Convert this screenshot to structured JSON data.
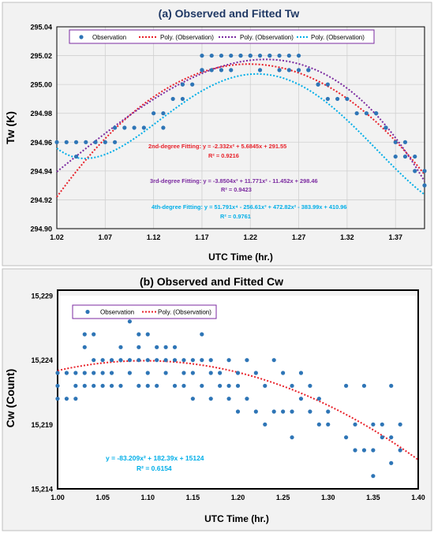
{
  "chart_data": [
    {
      "type": "scatter",
      "title": "(a) Observed  and Fitted Tw",
      "xlabel": "UTC Time (hr.)",
      "ylabel": "Tw (K)",
      "xlim": [
        1.02,
        1.4
      ],
      "ylim": [
        294.9,
        295.04
      ],
      "xticks": [
        "1.02",
        "1.07",
        "1.12",
        "1.17",
        "1.22",
        "1.27",
        "1.32",
        "1.37"
      ],
      "yticks": [
        "294.90",
        "294.92",
        "294.94",
        "294.96",
        "294.98",
        "295.00",
        "295.02",
        "295.04"
      ],
      "grid": true,
      "legend_position": "top",
      "legend": [
        "Observation",
        "Poly. (Observation)",
        "Poly. (Observation)",
        "Poly. (Observation)"
      ],
      "colors": {
        "observation": "#2e75b6",
        "fit2": "#e8212a",
        "fit3": "#7b2aa0",
        "fit4": "#00aee8",
        "title": "#1f3864",
        "frame": "#000000"
      },
      "series": [
        {
          "name": "Observation",
          "x": [
            1.02,
            1.03,
            1.04,
            1.04,
            1.05,
            1.06,
            1.07,
            1.08,
            1.08,
            1.09,
            1.1,
            1.11,
            1.12,
            1.13,
            1.13,
            1.14,
            1.15,
            1.15,
            1.16,
            1.17,
            1.17,
            1.17,
            1.18,
            1.18,
            1.19,
            1.19,
            1.2,
            1.2,
            1.21,
            1.21,
            1.22,
            1.22,
            1.23,
            1.23,
            1.24,
            1.24,
            1.25,
            1.25,
            1.26,
            1.26,
            1.27,
            1.27,
            1.28,
            1.28,
            1.29,
            1.29,
            1.3,
            1.3,
            1.31,
            1.32,
            1.33,
            1.34,
            1.35,
            1.35,
            1.36,
            1.36,
            1.37,
            1.37,
            1.38,
            1.38,
            1.39,
            1.39,
            1.4,
            1.4
          ],
          "y": [
            294.96,
            294.96,
            294.96,
            294.95,
            294.96,
            294.96,
            294.96,
            294.96,
            294.97,
            294.97,
            294.97,
            294.97,
            294.98,
            294.97,
            294.98,
            294.99,
            294.99,
            295.0,
            295.0,
            295.01,
            295.02,
            295.01,
            295.02,
            295.01,
            295.02,
            295.01,
            295.02,
            295.01,
            295.02,
            295.02,
            295.02,
            295.02,
            295.02,
            295.01,
            295.02,
            295.02,
            295.01,
            295.02,
            295.01,
            295.02,
            295.01,
            295.02,
            295.01,
            295.01,
            295.0,
            295.0,
            295.0,
            294.99,
            294.99,
            294.99,
            294.98,
            294.98,
            294.98,
            294.98,
            294.97,
            294.97,
            294.96,
            294.95,
            294.96,
            294.95,
            294.94,
            294.95,
            294.94,
            294.93
          ]
        },
        {
          "name": "Poly. (Observation)",
          "fit": "2nd-degree",
          "coefficients": [
            -2.332,
            5.6845,
            291.55
          ]
        },
        {
          "name": "Poly. (Observation)",
          "fit": "3rd-degree",
          "coefficients": [
            -3.8504,
            11.771,
            -11.452,
            298.46
          ]
        },
        {
          "name": "Poly. (Observation)",
          "fit": "4th-degree",
          "coefficients": [
            51.791,
            -256.61,
            472.82,
            -383.99,
            410.96
          ]
        }
      ],
      "annotations": [
        {
          "eq": "2nd-degree Fitting: y = -2.332x² + 5.6845x + 291.55",
          "r2": "R² = 0.9216"
        },
        {
          "eq": "3rd-degree Fitting: y = -3.8504x³ + 11.771x² - 11.452x + 298.46",
          "r2": "R² = 0.9423"
        },
        {
          "eq": "4th-degree Fitting: y = 51.791x⁴ - 256.61x³ + 472.82x² - 383.99x + 410.96",
          "r2": "R² = 0.9761"
        }
      ]
    },
    {
      "type": "scatter",
      "title": "(b) Observed  and Fitted Cw",
      "xlabel": "UTC Time (hr.)",
      "ylabel": "Cw (Count)",
      "xlim": [
        1.0,
        1.4
      ],
      "ylim": [
        15214,
        15229
      ],
      "xticks": [
        "1.00",
        "1.05",
        "1.10",
        "1.15",
        "1.20",
        "1.25",
        "1.30",
        "1.35",
        "1.40"
      ],
      "yticks": [
        "15,214",
        "15,219",
        "15,224",
        "15,229"
      ],
      "grid": false,
      "legend_position": "top-left",
      "legend": [
        "Observation",
        "Poly. (Observation)"
      ],
      "colors": {
        "observation": "#2e75b6",
        "fit2": "#e8212a",
        "annotation": "#00aee8",
        "title": "#000000",
        "frame": "#000000"
      },
      "series": [
        {
          "name": "Observation",
          "x": [
            1.0,
            1.0,
            1.0,
            1.01,
            1.01,
            1.02,
            1.02,
            1.02,
            1.03,
            1.03,
            1.03,
            1.03,
            1.04,
            1.04,
            1.04,
            1.04,
            1.05,
            1.05,
            1.05,
            1.06,
            1.06,
            1.06,
            1.07,
            1.07,
            1.07,
            1.08,
            1.08,
            1.08,
            1.09,
            1.09,
            1.09,
            1.09,
            1.1,
            1.1,
            1.1,
            1.1,
            1.11,
            1.11,
            1.11,
            1.12,
            1.12,
            1.12,
            1.13,
            1.13,
            1.13,
            1.14,
            1.14,
            1.14,
            1.15,
            1.15,
            1.15,
            1.16,
            1.16,
            1.16,
            1.17,
            1.17,
            1.17,
            1.18,
            1.18,
            1.19,
            1.19,
            1.19,
            1.2,
            1.2,
            1.2,
            1.21,
            1.21,
            1.22,
            1.22,
            1.23,
            1.23,
            1.24,
            1.24,
            1.25,
            1.25,
            1.26,
            1.26,
            1.26,
            1.27,
            1.27,
            1.28,
            1.28,
            1.29,
            1.29,
            1.3,
            1.3,
            1.32,
            1.32,
            1.33,
            1.33,
            1.34,
            1.34,
            1.35,
            1.35,
            1.35,
            1.36,
            1.36,
            1.37,
            1.37,
            1.37,
            1.38,
            1.38
          ],
          "y": [
            15222,
            15223,
            15221,
            15223,
            15221,
            15223,
            15221,
            15222,
            15225,
            15226,
            15223,
            15222,
            15226,
            15224,
            15223,
            15222,
            15224,
            15223,
            15222,
            15224,
            15223,
            15222,
            15225,
            15224,
            15222,
            15227,
            15224,
            15223,
            15226,
            15225,
            15224,
            15222,
            15226,
            15224,
            15223,
            15222,
            15225,
            15224,
            15222,
            15225,
            15224,
            15223,
            15225,
            15224,
            15222,
            15224,
            15223,
            15222,
            15224,
            15223,
            15221,
            15226,
            15224,
            15222,
            15224,
            15223,
            15221,
            15223,
            15222,
            15224,
            15222,
            15221,
            15223,
            15222,
            15220,
            15224,
            15221,
            15223,
            15220,
            15222,
            15219,
            15224,
            15220,
            15223,
            15220,
            15222,
            15220,
            15218,
            15223,
            15221,
            15222,
            15220,
            15221,
            15219,
            15219,
            15220,
            15222,
            15218,
            15219,
            15217,
            15222,
            15217,
            15219,
            15217,
            15215,
            15219,
            15218,
            15222,
            15218,
            15216,
            15219,
            15217
          ]
        },
        {
          "name": "Poly. (Observation)",
          "fit": "2nd-degree",
          "coefficients": [
            -83.209,
            182.39,
            15124
          ]
        }
      ],
      "annotations": [
        {
          "eq": "y = -83.209x² + 182.39x + 15124",
          "r2": "R² = 0.6154"
        }
      ]
    }
  ]
}
